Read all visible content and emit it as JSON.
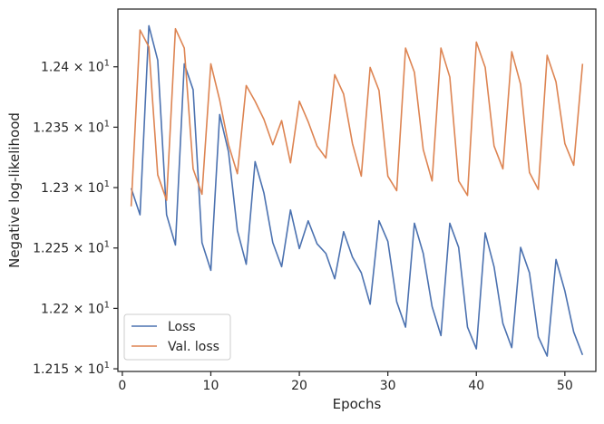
{
  "chart_data": {
    "type": "line",
    "title": "",
    "xlabel": "Epochs",
    "ylabel": "Negative log-likelihood",
    "xlim": [
      -0.5,
      53.5
    ],
    "ylim": [
      12.1478,
      12.4478
    ],
    "x_ticks": [
      0,
      10,
      20,
      30,
      40,
      50
    ],
    "x_tick_labels": [
      "0",
      "10",
      "20",
      "30",
      "40",
      "50"
    ],
    "y_ticks": [
      12.15,
      12.2,
      12.25,
      12.3,
      12.35,
      12.4
    ],
    "y_tick_mantissas": [
      "1.215",
      "1.22",
      "1.225",
      "1.23",
      "1.235",
      "1.24"
    ],
    "y_tick_base": "× 10",
    "y_tick_exponent": "1",
    "y_scale": "log",
    "grid": false,
    "legend_position": "lower-left",
    "x": [
      1,
      2,
      3,
      4,
      5,
      6,
      7,
      8,
      9,
      10,
      11,
      12,
      13,
      14,
      15,
      16,
      17,
      18,
      19,
      20,
      21,
      22,
      23,
      24,
      25,
      26,
      27,
      28,
      29,
      30,
      31,
      32,
      33,
      34,
      35,
      36,
      37,
      38,
      39,
      40,
      41,
      42,
      43,
      44,
      45,
      46,
      47,
      48,
      49,
      50,
      51,
      52
    ],
    "series": [
      {
        "name": "Loss",
        "color": "#4c72b0",
        "values": [
          12.2995,
          12.2775,
          12.434,
          12.4055,
          12.2775,
          12.2525,
          12.4025,
          12.381,
          12.2545,
          12.2315,
          12.3605,
          12.3295,
          12.2645,
          12.2365,
          12.3215,
          12.2955,
          12.2545,
          12.2345,
          12.2815,
          12.2495,
          12.2725,
          12.2535,
          12.2455,
          12.2245,
          12.2635,
          12.2425,
          12.2295,
          12.2035,
          12.2725,
          12.2555,
          12.2055,
          12.1845,
          12.2705,
          12.2455,
          12.2015,
          12.1775,
          12.2705,
          12.2505,
          12.1845,
          12.1665,
          12.2625,
          12.2345,
          12.1875,
          12.1675,
          12.2505,
          12.2295,
          12.1765,
          12.1605,
          12.2405,
          12.2145,
          12.1805,
          12.1615
        ]
      },
      {
        "name": "Val. loss",
        "color": "#dd8452",
        "values": [
          12.2845,
          12.4305,
          12.4165,
          12.3105,
          12.2895,
          12.4315,
          12.4155,
          12.3155,
          12.2945,
          12.4025,
          12.3725,
          12.3355,
          12.3115,
          12.3845,
          12.3715,
          12.3565,
          12.3355,
          12.3555,
          12.3205,
          12.3715,
          12.3545,
          12.3345,
          12.3245,
          12.3935,
          12.3775,
          12.3365,
          12.3095,
          12.3995,
          12.3805,
          12.3095,
          12.2975,
          12.4155,
          12.3955,
          12.3315,
          12.3055,
          12.4155,
          12.3915,
          12.3055,
          12.2935,
          12.4205,
          12.3995,
          12.3345,
          12.3155,
          12.4125,
          12.3855,
          12.3125,
          12.2985,
          12.4095,
          12.3875,
          12.3365,
          12.3185,
          12.4025
        ]
      }
    ]
  }
}
